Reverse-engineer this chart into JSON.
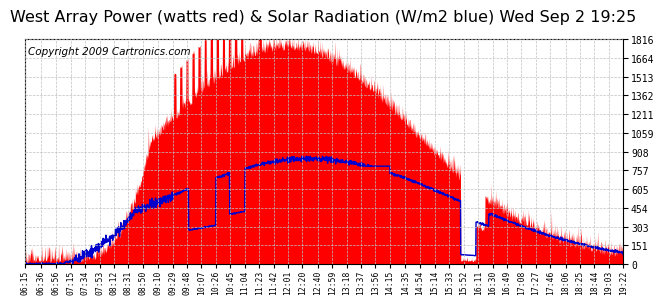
{
  "title": "West Array Power (watts red) & Solar Radiation (W/m2 blue) Wed Sep 2 19:25",
  "copyright": "Copyright 2009 Cartronics.com",
  "y_ticks": [
    0.0,
    151.3,
    302.6,
    454.0,
    605.3,
    756.6,
    907.9,
    1059.2,
    1210.6,
    1361.9,
    1513.2,
    1664.5,
    1815.9
  ],
  "y_max": 1815.9,
  "y_min": 0.0,
  "background_color": "#ffffff",
  "plot_bg_color": "#ffffff",
  "grid_color": "#c0c0c0",
  "red_color": "#ff0000",
  "blue_color": "#0000cc",
  "title_fontsize": 11.5,
  "copyright_fontsize": 7.5,
  "x_tick_labels": [
    "06:15",
    "06:36",
    "06:56",
    "07:15",
    "07:34",
    "07:53",
    "08:12",
    "08:31",
    "08:50",
    "09:10",
    "09:29",
    "09:48",
    "10:07",
    "10:26",
    "10:45",
    "11:04",
    "11:23",
    "11:42",
    "12:01",
    "12:20",
    "12:40",
    "12:59",
    "13:18",
    "13:37",
    "13:56",
    "14:15",
    "14:35",
    "14:54",
    "15:14",
    "15:33",
    "15:52",
    "16:11",
    "16:30",
    "16:49",
    "17:08",
    "17:27",
    "17:46",
    "18:06",
    "18:25",
    "18:44",
    "19:03",
    "19:22"
  ]
}
